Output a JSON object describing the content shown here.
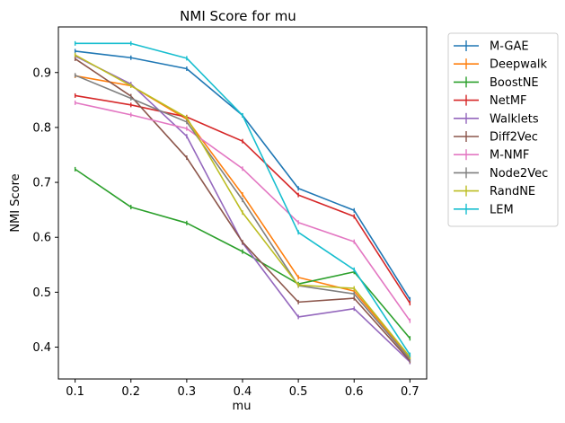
{
  "chart_data": {
    "type": "line",
    "title": "NMI Score for mu",
    "xlabel": "mu",
    "ylabel": "NMI Score",
    "x": [
      0.1,
      0.2,
      0.3,
      0.4,
      0.5,
      0.6,
      0.7
    ],
    "x_tick_labels": [
      "0.1",
      "0.2",
      "0.3",
      "0.4",
      "0.5",
      "0.6",
      "0.7"
    ],
    "y_ticks": [
      0.4,
      0.5,
      0.6,
      0.7,
      0.8,
      0.9
    ],
    "y_tick_labels": [
      "0.4",
      "0.5",
      "0.6",
      "0.7",
      "0.8",
      "0.9"
    ],
    "xlim": [
      0.07,
      0.73
    ],
    "ylim": [
      0.342,
      0.983
    ],
    "grid": false,
    "legend_placement": "outside-upper-right",
    "series": [
      {
        "name": "M-GAE",
        "color": "#1f77b4",
        "values": [
          0.939,
          0.927,
          0.907,
          0.822,
          0.689,
          0.649,
          0.487
        ]
      },
      {
        "name": "Deepwalk",
        "color": "#ff7f0e",
        "values": [
          0.894,
          0.876,
          0.815,
          0.678,
          0.527,
          0.502,
          0.381
        ]
      },
      {
        "name": "BoostNE",
        "color": "#2ca02c",
        "values": [
          0.724,
          0.655,
          0.626,
          0.574,
          0.515,
          0.537,
          0.416
        ]
      },
      {
        "name": "NetMF",
        "color": "#d62728",
        "values": [
          0.858,
          0.841,
          0.819,
          0.775,
          0.677,
          0.638,
          0.48
        ]
      },
      {
        "name": "Walklets",
        "color": "#9467bd",
        "values": [
          0.93,
          0.879,
          0.784,
          0.59,
          0.455,
          0.47,
          0.373
        ]
      },
      {
        "name": "Diff2Vec",
        "color": "#8c564b",
        "values": [
          0.925,
          0.857,
          0.745,
          0.591,
          0.482,
          0.489,
          0.375
        ]
      },
      {
        "name": "M-NMF",
        "color": "#e377c2",
        "values": [
          0.845,
          0.823,
          0.798,
          0.725,
          0.627,
          0.592,
          0.448
        ]
      },
      {
        "name": "Node2Vec",
        "color": "#7f7f7f",
        "values": [
          0.895,
          0.853,
          0.81,
          0.668,
          0.512,
          0.497,
          0.378
        ]
      },
      {
        "name": "RandNE",
        "color": "#bcbd22",
        "values": [
          0.932,
          0.876,
          0.818,
          0.645,
          0.513,
          0.507,
          0.382
        ]
      },
      {
        "name": "LEM",
        "color": "#17becf",
        "values": [
          0.953,
          0.953,
          0.926,
          0.822,
          0.609,
          0.541,
          0.386
        ]
      }
    ]
  }
}
